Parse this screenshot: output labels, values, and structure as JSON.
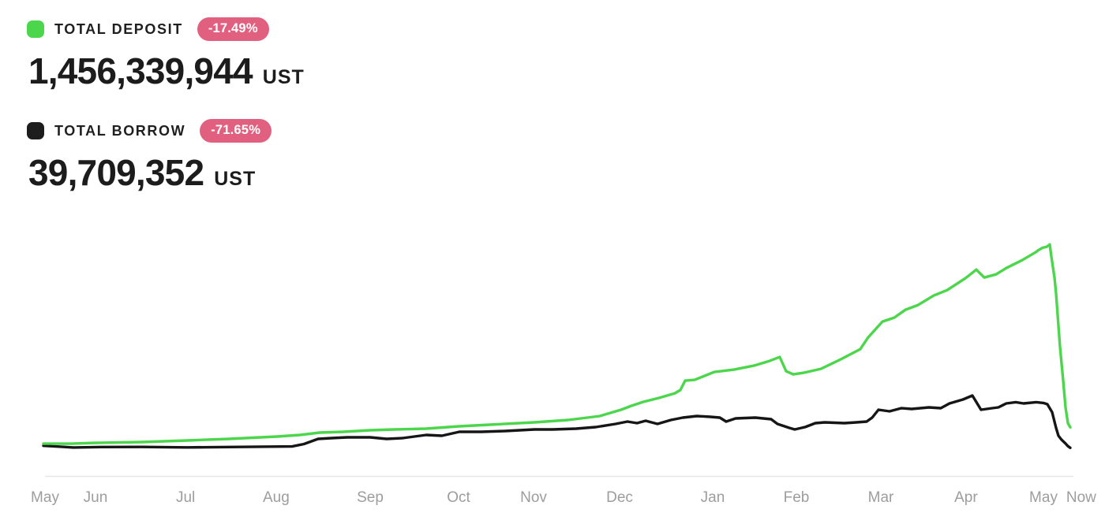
{
  "stats": [
    {
      "label": "TOTAL DEPOSIT",
      "change": "-17.49%",
      "value": "1,456,339,944",
      "unit": "UST",
      "swatch_color": "#4bd64b"
    },
    {
      "label": "TOTAL BORROW",
      "change": "-71.65%",
      "value": "39,709,352",
      "unit": "UST",
      "swatch_color": "#1d1d1d"
    }
  ],
  "colors": {
    "badge_bg": "#e2607f",
    "badge_text": "#ffffff",
    "axis_line": "#e5e5e5",
    "axis_label": "#9d9d9d",
    "deposit_line": "#4bd64b",
    "borrow_line": "#161616",
    "background": "#ffffff"
  },
  "chart_data": {
    "type": "line",
    "title": "",
    "xlabel": "",
    "ylabel": "",
    "unit": "UST",
    "values_in": "millions of UST",
    "ylim": [
      0,
      14100
    ],
    "grid": false,
    "legend_position": "top-left",
    "x_axis_ticks": [
      {
        "label": "May",
        "pos": 0.0015
      },
      {
        "label": "Jun",
        "pos": 0.0507
      },
      {
        "label": "Jul",
        "pos": 0.1384
      },
      {
        "label": "Aug",
        "pos": 0.2267
      },
      {
        "label": "Sep",
        "pos": 0.3182
      },
      {
        "label": "Oct",
        "pos": 0.4043
      },
      {
        "label": "Nov",
        "pos": 0.4773
      },
      {
        "label": "Dec",
        "pos": 0.5611
      },
      {
        "label": "Jan",
        "pos": 0.6518
      },
      {
        "label": "Feb",
        "pos": 0.7333
      },
      {
        "label": "Mar",
        "pos": 0.8155
      },
      {
        "label": "Apr",
        "pos": 0.8985
      },
      {
        "label": "May",
        "pos": 0.9739
      },
      {
        "label": "Now",
        "pos": 1.0107
      }
    ],
    "series": [
      {
        "name": "Total Deposit",
        "color": "#4bd64b",
        "final_value_ust": "1,456,339,944",
        "change": "-17.49%",
        "points": [
          [
            0.0,
            320
          ],
          [
            0.0269,
            320
          ],
          [
            0.0515,
            380
          ],
          [
            0.0961,
            435
          ],
          [
            0.1399,
            544
          ],
          [
            0.1806,
            653
          ],
          [
            0.2275,
            816
          ],
          [
            0.2498,
            925
          ],
          [
            0.269,
            1088
          ],
          [
            0.2921,
            1142
          ],
          [
            0.3182,
            1251
          ],
          [
            0.342,
            1306
          ],
          [
            0.3728,
            1360
          ],
          [
            0.4051,
            1523
          ],
          [
            0.4343,
            1632
          ],
          [
            0.4781,
            1795
          ],
          [
            0.5111,
            1958
          ],
          [
            0.5419,
            2230
          ],
          [
            0.5626,
            2666
          ],
          [
            0.5726,
            2938
          ],
          [
            0.5842,
            3210
          ],
          [
            0.5995,
            3482
          ],
          [
            0.6149,
            3808
          ],
          [
            0.6203,
            4026
          ],
          [
            0.6249,
            4678
          ],
          [
            0.6341,
            4733
          ],
          [
            0.6533,
            5277
          ],
          [
            0.6725,
            5440
          ],
          [
            0.6918,
            5712
          ],
          [
            0.7071,
            6038
          ],
          [
            0.7171,
            6310
          ],
          [
            0.7233,
            5331
          ],
          [
            0.7302,
            5114
          ],
          [
            0.7402,
            5222
          ],
          [
            0.7571,
            5494
          ],
          [
            0.7763,
            6147
          ],
          [
            0.7955,
            6854
          ],
          [
            0.8032,
            7670
          ],
          [
            0.8171,
            8758
          ],
          [
            0.8286,
            9030
          ],
          [
            0.8394,
            9574
          ],
          [
            0.8517,
            9901
          ],
          [
            0.867,
            10554
          ],
          [
            0.8801,
            10934
          ],
          [
            0.8978,
            11750
          ],
          [
            0.9085,
            12349
          ],
          [
            0.9162,
            11805
          ],
          [
            0.9277,
            12022
          ],
          [
            0.9377,
            12458
          ],
          [
            0.9531,
            13002
          ],
          [
            0.9662,
            13546
          ],
          [
            0.9692,
            13700
          ],
          [
            0.9731,
            13860
          ],
          [
            0.9769,
            13920
          ],
          [
            0.98,
            14090
          ],
          [
            0.9815,
            13300
          ],
          [
            0.9846,
            11800
          ],
          [
            0.9862,
            10700
          ],
          [
            0.99,
            7000
          ],
          [
            0.9931,
            4700
          ],
          [
            0.9954,
            2830
          ],
          [
            0.9977,
            1740
          ],
          [
            1.0,
            1456
          ]
        ]
      },
      {
        "name": "Total Borrow",
        "color": "#161616",
        "final_value_ust": "39,709,352",
        "change": "-71.65%",
        "points": [
          [
            0.0,
            180
          ],
          [
            0.0154,
            120
          ],
          [
            0.0292,
            60
          ],
          [
            0.0576,
            90
          ],
          [
            0.0961,
            100
          ],
          [
            0.1399,
            65
          ],
          [
            0.1806,
            95
          ],
          [
            0.2114,
            115
          ],
          [
            0.2421,
            130
          ],
          [
            0.2537,
            300
          ],
          [
            0.2675,
            653
          ],
          [
            0.2805,
            707
          ],
          [
            0.2959,
            762
          ],
          [
            0.3182,
            762
          ],
          [
            0.3343,
            653
          ],
          [
            0.3497,
            707
          ],
          [
            0.3728,
            925
          ],
          [
            0.3881,
            871
          ],
          [
            0.4051,
            1142
          ],
          [
            0.4266,
            1142
          ],
          [
            0.4497,
            1197
          ],
          [
            0.4781,
            1306
          ],
          [
            0.4958,
            1306
          ],
          [
            0.5188,
            1360
          ],
          [
            0.538,
            1469
          ],
          [
            0.5572,
            1686
          ],
          [
            0.5688,
            1850
          ],
          [
            0.578,
            1741
          ],
          [
            0.5865,
            1904
          ],
          [
            0.598,
            1686
          ],
          [
            0.6111,
            1958
          ],
          [
            0.6226,
            2122
          ],
          [
            0.6364,
            2230
          ],
          [
            0.6495,
            2176
          ],
          [
            0.6587,
            2122
          ],
          [
            0.6649,
            1850
          ],
          [
            0.6741,
            2067
          ],
          [
            0.6933,
            2122
          ],
          [
            0.7087,
            2013
          ],
          [
            0.7148,
            1686
          ],
          [
            0.7264,
            1414
          ],
          [
            0.7317,
            1306
          ],
          [
            0.7417,
            1469
          ],
          [
            0.7517,
            1741
          ],
          [
            0.7609,
            1795
          ],
          [
            0.7802,
            1741
          ],
          [
            0.7917,
            1795
          ],
          [
            0.8017,
            1850
          ],
          [
            0.8071,
            2122
          ],
          [
            0.8132,
            2666
          ],
          [
            0.824,
            2557
          ],
          [
            0.8355,
            2775
          ],
          [
            0.8455,
            2720
          ],
          [
            0.8624,
            2829
          ],
          [
            0.8739,
            2775
          ],
          [
            0.8824,
            3101
          ],
          [
            0.8955,
            3373
          ],
          [
            0.9047,
            3645
          ],
          [
            0.9131,
            2666
          ],
          [
            0.9239,
            2775
          ],
          [
            0.93,
            2829
          ],
          [
            0.9377,
            3101
          ],
          [
            0.9469,
            3190
          ],
          [
            0.9546,
            3101
          ],
          [
            0.9669,
            3190
          ],
          [
            0.9739,
            3135
          ],
          [
            0.9777,
            3047
          ],
          [
            0.9823,
            2500
          ],
          [
            0.9862,
            1414
          ],
          [
            0.9885,
            870
          ],
          [
            0.9915,
            600
          ],
          [
            0.9954,
            330
          ],
          [
            0.9977,
            150
          ],
          [
            1.0,
            40
          ]
        ]
      }
    ]
  }
}
